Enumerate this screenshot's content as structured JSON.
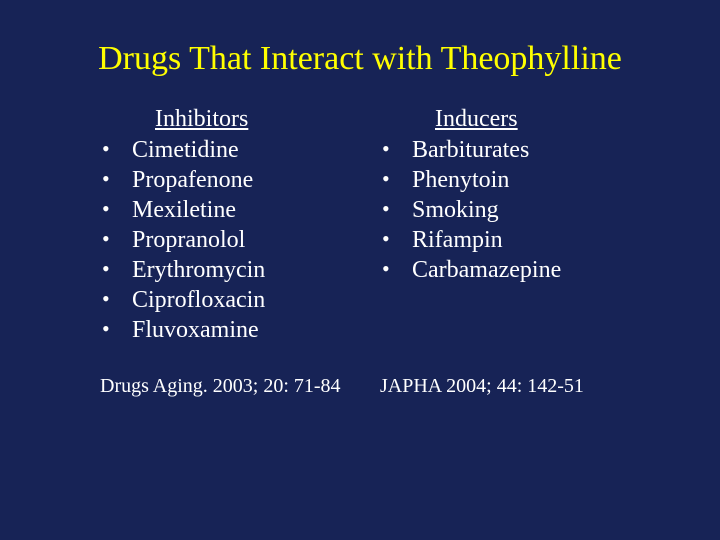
{
  "colors": {
    "background": "#172356",
    "title": "#ffff00",
    "text": "#ffffff"
  },
  "typography": {
    "family": "Times New Roman",
    "title_size_pt": 34,
    "body_size_pt": 24,
    "ref_size_pt": 20
  },
  "title": "Drugs That Interact with Theophylline",
  "left": {
    "heading": "Inhibitors",
    "items": [
      "Cimetidine",
      "Propafenone",
      "Mexiletine",
      "Propranolol",
      "Erythromycin",
      "Ciprofloxacin",
      "Fluvoxamine"
    ],
    "reference": "Drugs Aging. 2003; 20: 71-84"
  },
  "right": {
    "heading": "Inducers",
    "items": [
      "Barbiturates",
      "Phenytoin",
      "Smoking",
      "Rifampin",
      "Carbamazepine"
    ],
    "reference": "JAPHA 2004; 44: 142-51"
  }
}
